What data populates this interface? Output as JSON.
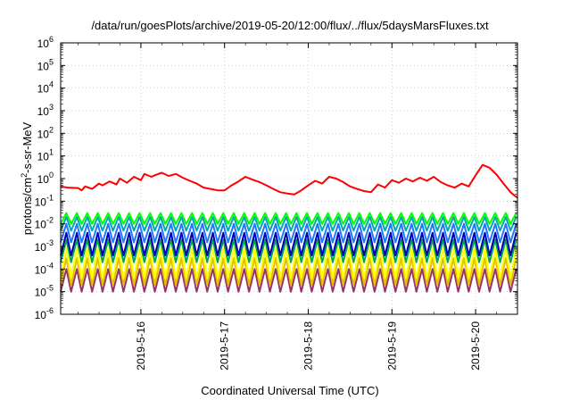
{
  "chart_data": {
    "type": "line",
    "title": "/data/run/goesPlots/archive/2019-05-20/12:00/flux/../flux/5daysMarsFluxes.txt",
    "xlabel": "Coordinated Universal Time (UTC)",
    "ylabel": {
      "pre": "protons/cm",
      "sup": "2",
      "post": "-s-sr-MeV"
    },
    "yscale": "log",
    "ylim": [
      1e-06,
      1000000.0
    ],
    "xlim": [
      "2019-05-15T01:00",
      "2019-05-20T12:00"
    ],
    "grid": true,
    "legend": "none",
    "x_ticks": [
      "2019-5-16",
      "2019-5-17",
      "2019-5-18",
      "2019-5-19",
      "2019-5-20"
    ],
    "y_ticks": [
      {
        "base": "10",
        "exp": "-6"
      },
      {
        "base": "10",
        "exp": "-5"
      },
      {
        "base": "10",
        "exp": "-4"
      },
      {
        "base": "10",
        "exp": "-3"
      },
      {
        "base": "10",
        "exp": "-2"
      },
      {
        "base": "10",
        "exp": "-1"
      },
      {
        "base": "10",
        "exp": "0"
      },
      {
        "base": "10",
        "exp": "1"
      },
      {
        "base": "10",
        "exp": "2"
      },
      {
        "base": "10",
        "exp": "3"
      },
      {
        "base": "10",
        "exp": "4"
      },
      {
        "base": "10",
        "exp": "5"
      },
      {
        "base": "10",
        "exp": "6"
      }
    ],
    "sample_times": [
      "2019-05-15T01:00",
      "2019-05-15T03:00",
      "2019-05-15T06:00",
      "2019-05-15T07:00",
      "2019-05-15T08:00",
      "2019-05-15T10:00",
      "2019-05-15T12:00",
      "2019-05-15T13:00",
      "2019-05-15T15:00",
      "2019-05-15T17:00",
      "2019-05-15T18:00",
      "2019-05-15T20:00",
      "2019-05-15T22:00",
      "2019-05-16T00:00",
      "2019-05-16T01:00",
      "2019-05-16T03:00",
      "2019-05-16T04:00",
      "2019-05-16T06:00",
      "2019-05-16T08:00",
      "2019-05-16T10:00",
      "2019-05-16T12:00",
      "2019-05-16T14:00",
      "2019-05-16T16:00",
      "2019-05-16T18:00",
      "2019-05-16T20:00",
      "2019-05-16T22:00",
      "2019-05-17T00:00",
      "2019-05-17T02:00",
      "2019-05-17T04:00",
      "2019-05-17T06:00",
      "2019-05-17T08:00",
      "2019-05-17T10:00",
      "2019-05-17T12:00",
      "2019-05-17T14:00",
      "2019-05-17T16:00",
      "2019-05-17T18:00",
      "2019-05-17T20:00",
      "2019-05-17T22:00",
      "2019-05-18T00:00",
      "2019-05-18T02:00",
      "2019-05-18T04:00",
      "2019-05-18T06:00",
      "2019-05-18T08:00",
      "2019-05-18T10:00",
      "2019-05-18T12:00",
      "2019-05-18T14:00",
      "2019-05-18T16:00",
      "2019-05-18T18:00",
      "2019-05-18T20:00",
      "2019-05-18T22:00",
      "2019-05-19T00:00",
      "2019-05-19T02:00",
      "2019-05-19T04:00",
      "2019-05-19T06:00",
      "2019-05-19T08:00",
      "2019-05-19T10:00",
      "2019-05-19T12:00",
      "2019-05-19T14:00",
      "2019-05-19T16:00",
      "2019-05-19T18:00",
      "2019-05-19T20:00",
      "2019-05-19T22:00",
      "2019-05-20T00:00",
      "2019-05-20T02:00",
      "2019-05-20T04:00",
      "2019-05-20T06:00",
      "2019-05-20T08:00",
      "2019-05-20T10:00",
      "2019-05-20T12:00"
    ],
    "series": [
      {
        "color": "#ff0000",
        "style": "smooth",
        "values": [
          0.45,
          0.4,
          0.38,
          0.3,
          0.45,
          0.35,
          0.6,
          0.5,
          0.75,
          0.55,
          1.0,
          0.65,
          1.2,
          0.85,
          1.6,
          1.2,
          1.4,
          1.8,
          1.3,
          1.6,
          1.1,
          0.8,
          0.6,
          0.4,
          0.35,
          0.3,
          0.3,
          0.5,
          0.75,
          1.2,
          0.9,
          0.7,
          0.5,
          0.35,
          0.25,
          0.22,
          0.2,
          0.3,
          0.5,
          0.8,
          0.6,
          1.2,
          1.0,
          0.7,
          0.45,
          0.35,
          0.28,
          0.25,
          0.55,
          0.4,
          0.85,
          0.65,
          1.0,
          0.75,
          1.1,
          0.8,
          1.2,
          0.7,
          0.5,
          0.4,
          0.6,
          0.45,
          1.4,
          4.0,
          3.0,
          1.5,
          0.6,
          0.25,
          0.14
        ]
      },
      {
        "color": "#00ff00",
        "style": "sawtooth",
        "period_hours": 3,
        "high": 0.03,
        "low": 0.01
      },
      {
        "color": "#00aaaa",
        "style": "sawtooth",
        "period_hours": 3,
        "high": 0.02,
        "low": 0.005
      },
      {
        "color": "#1e78ff",
        "style": "sawtooth",
        "period_hours": 3,
        "high": 0.01,
        "low": 0.0015
      },
      {
        "color": "#0000bb",
        "style": "sawtooth",
        "period_hours": 3,
        "high": 0.004,
        "low": 0.0004
      },
      {
        "color": "#00aa44",
        "style": "sawtooth",
        "period_hours": 3,
        "high": 0.002,
        "low": 0.0002
      },
      {
        "color": "#ffff00",
        "style": "sawtooth",
        "period_hours": 3,
        "high": 0.0008,
        "low": 4e-05
      },
      {
        "color": "#e0c000",
        "style": "sawtooth",
        "period_hours": 3,
        "high": 0.0003,
        "low": 2e-05
      },
      {
        "color": "#993366",
        "style": "sawtooth",
        "period_hours": 3,
        "high": 0.0001,
        "low": 1e-05
      }
    ]
  }
}
